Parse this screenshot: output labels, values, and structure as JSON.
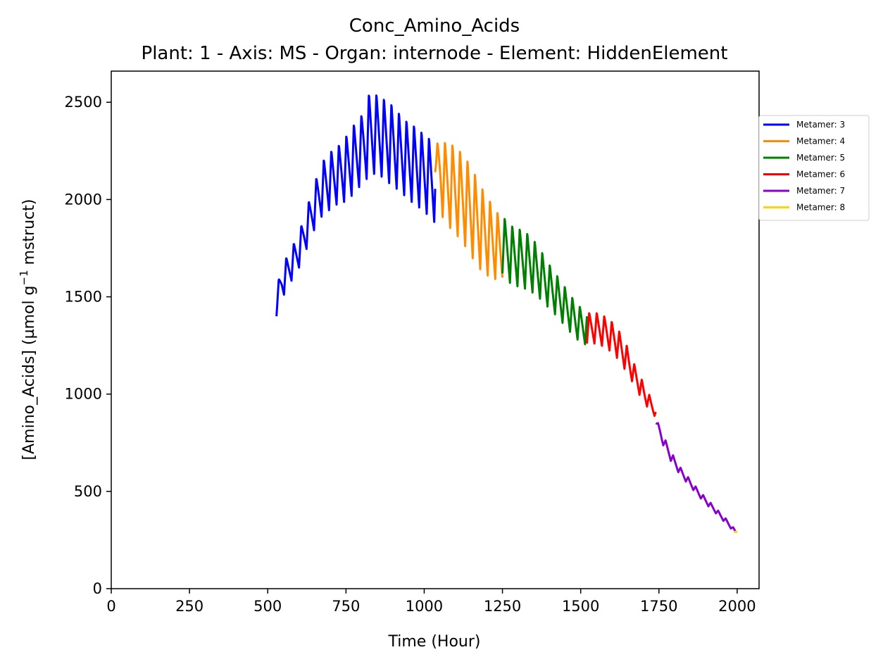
{
  "chart_data": {
    "type": "line",
    "title": "Conc_Amino_Acids",
    "subtitle": "Plant: 1 - Axis: MS - Organ: internode - Element: HiddenElement",
    "xlabel": "Time (Hour)",
    "ylabel_prefix": "[Amino_Acids] (µmol g",
    "ylabel_sup": "−1",
    "ylabel_suffix": " mstruct)",
    "xlim": [
      0,
      2070
    ],
    "ylim": [
      0,
      2660
    ],
    "xticks": [
      0,
      250,
      500,
      750,
      1000,
      1250,
      1500,
      1750,
      2000
    ],
    "xtick_labels": [
      "0",
      "250",
      "500",
      "750",
      "1000",
      "1250",
      "1500",
      "1750",
      "2000"
    ],
    "yticks": [
      0,
      500,
      1000,
      1500,
      2000,
      2500
    ],
    "ytick_labels": [
      "0",
      "500",
      "1000",
      "1500",
      "2000",
      "2500"
    ],
    "grid": false,
    "legend_position": "outside-right-top",
    "series": [
      {
        "name": "Metamer: 3",
        "color": "#0000ff",
        "oscillation_period_hours": 24,
        "start_value": 1400,
        "x": [
          528,
          545,
          575,
          600,
          625,
          650,
          675,
          700,
          725,
          750,
          775,
          800,
          825,
          850,
          875,
          900,
          925,
          950,
          975,
          1000,
          1035
        ],
        "y_high": [
          1540,
          1660,
          1750,
          1830,
          1960,
          2090,
          2200,
          2250,
          2280,
          2330,
          2390,
          2440,
          2555,
          2545,
          2520,
          2490,
          2440,
          2400,
          2380,
          2340,
          2300
        ],
        "y_low": [
          1400,
          1490,
          1580,
          1650,
          1750,
          1850,
          1920,
          1950,
          1980,
          1990,
          2030,
          2080,
          2120,
          2140,
          2100,
          2070,
          2040,
          2000,
          1970,
          1940,
          1880
        ]
      },
      {
        "name": "Metamer: 4",
        "color": "#ff8c00",
        "oscillation_period_hours": 24,
        "x": [
          1035,
          1060,
          1090,
          1120,
          1150,
          1180,
          1210,
          1250
        ],
        "y_high": [
          2290,
          2305,
          2290,
          2250,
          2180,
          2080,
          2000,
          1900
        ],
        "y_low": [
          2140,
          1900,
          1840,
          1790,
          1710,
          1640,
          1600,
          1580
        ]
      },
      {
        "name": "Metamer: 5",
        "color": "#008000",
        "oscillation_period_hours": 24,
        "x": [
          1250,
          1280,
          1310,
          1340,
          1370,
          1400,
          1430,
          1460,
          1490,
          1520
        ],
        "y_high": [
          1920,
          1870,
          1850,
          1820,
          1750,
          1670,
          1600,
          1530,
          1460,
          1430
        ],
        "y_low": [
          1620,
          1560,
          1550,
          1530,
          1490,
          1440,
          1390,
          1330,
          1280,
          1250
        ]
      },
      {
        "name": "Metamer: 6",
        "color": "#ff0000",
        "oscillation_period_hours": 24,
        "x": [
          1520,
          1550,
          1580,
          1610,
          1640,
          1670,
          1700,
          1740
        ],
        "y_high": [
          1420,
          1420,
          1400,
          1360,
          1280,
          1160,
          1060,
          930
        ],
        "y_low": [
          1260,
          1260,
          1240,
          1200,
          1130,
          1050,
          960,
          880
        ]
      },
      {
        "name": "Metamer: 7",
        "color": "#8800cc",
        "oscillation_period_hours": 24,
        "x": [
          1740,
          1760,
          1790,
          1820,
          1850,
          1880,
          1910,
          1940,
          1970,
          1995
        ],
        "y_high": [
          880,
          800,
          700,
          620,
          560,
          500,
          450,
          400,
          350,
          300
        ],
        "y_low": [
          850,
          750,
          650,
          580,
          525,
          470,
          420,
          375,
          325,
          285
        ]
      },
      {
        "name": "Metamer: 8",
        "color": "#ffd700",
        "oscillation_period_hours": 24,
        "x": [
          1990,
          1993,
          1996,
          2000
        ],
        "y_high": [
          305,
          300,
          295,
          290
        ],
        "y_low": [
          290,
          285,
          282,
          280
        ]
      }
    ]
  }
}
